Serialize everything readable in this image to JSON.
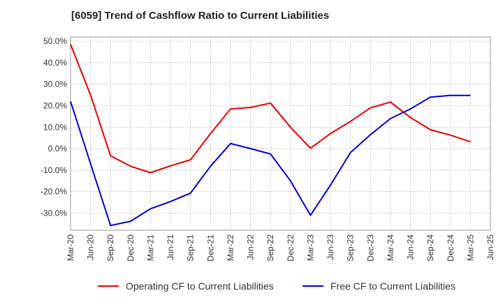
{
  "chart_data": {
    "type": "line",
    "title": "[6059]  Trend of Cashflow Ratio to Current Liabilities",
    "xlabel": "",
    "ylabel": "",
    "categories": [
      "Mar-20",
      "Jun-20",
      "Sep-20",
      "Dec-20",
      "Mar-21",
      "Jun-21",
      "Sep-21",
      "Dec-21",
      "Mar-22",
      "Jun-22",
      "Sep-22",
      "Dec-22",
      "Mar-23",
      "Jun-23",
      "Sep-23",
      "Dec-23",
      "Mar-24",
      "Jun-24",
      "Sep-24",
      "Dec-24",
      "Mar-25",
      "Jun-25"
    ],
    "y_ticks": [
      -30,
      -20,
      -10,
      0,
      10,
      20,
      30,
      40,
      50
    ],
    "y_tick_labels": [
      "-30.0%",
      "-20.0%",
      "-10.0%",
      "0.0%",
      "10.0%",
      "20.0%",
      "30.0%",
      "40.0%",
      "50.0%"
    ],
    "ylim": [
      -38,
      52
    ],
    "grid": true,
    "legend_position": "bottom",
    "series": [
      {
        "name": "Operating CF to Current Liabilities",
        "color": "#e60000",
        "values": [
          48.6,
          25.0,
          -3.3,
          -8.2,
          -11.2,
          -8.0,
          -5.2,
          7.0,
          18.5,
          19.2,
          21.2,
          10.0,
          0.2,
          7.0,
          12.7,
          19.0,
          21.7,
          14.5,
          8.8,
          6.3,
          3.2,
          null
        ]
      },
      {
        "name": "Free CF to Current Liabilities",
        "color": "#0000cc",
        "values": [
          22.0,
          -7.0,
          -35.8,
          -33.8,
          -28.0,
          -24.6,
          -20.7,
          -8.2,
          2.4,
          0.0,
          -2.5,
          -15.0,
          -31.0,
          -17.0,
          -1.8,
          6.5,
          14.0,
          18.5,
          24.0,
          24.8,
          24.8,
          null
        ]
      }
    ]
  }
}
